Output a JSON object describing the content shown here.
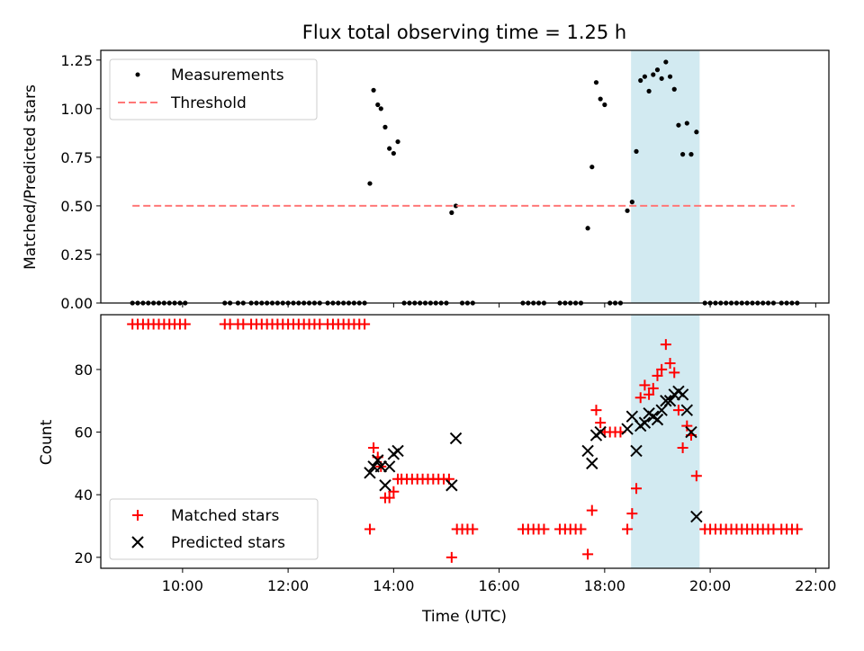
{
  "figure": {
    "title": "Flux total observing time = 1.25 h"
  },
  "chart_data": [
    {
      "type": "scatter",
      "ylabel": "Matched/Predicted stars",
      "xlim": [
        8.45,
        22.25
      ],
      "ylim": [
        0,
        1.3
      ],
      "yticks": [
        "0.00",
        "0.25",
        "0.50",
        "0.75",
        "1.00",
        "1.25"
      ],
      "grid": false,
      "legend_position": "top-left",
      "highlight_span": [
        18.5,
        19.8
      ],
      "highlight_color": "#add8e6",
      "series": [
        {
          "name": "Measurements",
          "marker": "dot",
          "color": "#000000",
          "points": [
            [
              9.05,
              0
            ],
            [
              9.15,
              0
            ],
            [
              9.25,
              0
            ],
            [
              9.35,
              0
            ],
            [
              9.45,
              0
            ],
            [
              9.55,
              0
            ],
            [
              9.65,
              0
            ],
            [
              9.75,
              0
            ],
            [
              9.85,
              0
            ],
            [
              9.95,
              0
            ],
            [
              10.05,
              0
            ],
            [
              10.8,
              0
            ],
            [
              10.9,
              0
            ],
            [
              11.05,
              0
            ],
            [
              11.15,
              0
            ],
            [
              11.3,
              0
            ],
            [
              11.4,
              0
            ],
            [
              11.5,
              0
            ],
            [
              11.6,
              0
            ],
            [
              11.7,
              0
            ],
            [
              11.8,
              0
            ],
            [
              11.9,
              0
            ],
            [
              12.0,
              0
            ],
            [
              12.1,
              0
            ],
            [
              12.2,
              0
            ],
            [
              12.3,
              0
            ],
            [
              12.4,
              0
            ],
            [
              12.5,
              0
            ],
            [
              12.6,
              0
            ],
            [
              12.75,
              0
            ],
            [
              12.85,
              0
            ],
            [
              12.95,
              0
            ],
            [
              13.05,
              0
            ],
            [
              13.15,
              0
            ],
            [
              13.25,
              0
            ],
            [
              13.35,
              0
            ],
            [
              13.45,
              0
            ],
            [
              13.55,
              0.615
            ],
            [
              13.62,
              1.095
            ],
            [
              13.7,
              1.02
            ],
            [
              13.76,
              1.0
            ],
            [
              13.84,
              0.905
            ],
            [
              13.92,
              0.795
            ],
            [
              14.0,
              0.77
            ],
            [
              14.08,
              0.83
            ],
            [
              14.2,
              0
            ],
            [
              14.3,
              0
            ],
            [
              14.4,
              0
            ],
            [
              14.5,
              0
            ],
            [
              14.6,
              0
            ],
            [
              14.7,
              0
            ],
            [
              14.8,
              0
            ],
            [
              14.9,
              0
            ],
            [
              15.0,
              0
            ],
            [
              15.1,
              0.465
            ],
            [
              15.18,
              0.5
            ],
            [
              15.3,
              0
            ],
            [
              15.4,
              0
            ],
            [
              15.5,
              0
            ],
            [
              16.45,
              0
            ],
            [
              16.55,
              0
            ],
            [
              16.65,
              0
            ],
            [
              16.75,
              0
            ],
            [
              16.85,
              0
            ],
            [
              17.15,
              0
            ],
            [
              17.25,
              0
            ],
            [
              17.35,
              0
            ],
            [
              17.45,
              0
            ],
            [
              17.55,
              0
            ],
            [
              17.68,
              0.385
            ],
            [
              17.76,
              0.7
            ],
            [
              17.84,
              1.135
            ],
            [
              17.92,
              1.05
            ],
            [
              18.0,
              1.02
            ],
            [
              18.1,
              0
            ],
            [
              18.2,
              0
            ],
            [
              18.3,
              0
            ],
            [
              18.43,
              0.475
            ],
            [
              18.52,
              0.52
            ],
            [
              18.6,
              0.78
            ],
            [
              18.68,
              1.145
            ],
            [
              18.76,
              1.165
            ],
            [
              18.84,
              1.09
            ],
            [
              18.92,
              1.175
            ],
            [
              19.0,
              1.2
            ],
            [
              19.08,
              1.155
            ],
            [
              19.16,
              1.24
            ],
            [
              19.24,
              1.165
            ],
            [
              19.32,
              1.1
            ],
            [
              19.4,
              0.915
            ],
            [
              19.48,
              0.765
            ],
            [
              19.56,
              0.925
            ],
            [
              19.64,
              0.765
            ],
            [
              19.74,
              0.88
            ],
            [
              19.9,
              0
            ],
            [
              20.0,
              0
            ],
            [
              20.1,
              0
            ],
            [
              20.2,
              0
            ],
            [
              20.3,
              0
            ],
            [
              20.4,
              0
            ],
            [
              20.5,
              0
            ],
            [
              20.6,
              0
            ],
            [
              20.7,
              0
            ],
            [
              20.8,
              0
            ],
            [
              20.9,
              0
            ],
            [
              21.0,
              0
            ],
            [
              21.1,
              0
            ],
            [
              21.2,
              0
            ],
            [
              21.35,
              0
            ],
            [
              21.45,
              0
            ],
            [
              21.55,
              0
            ],
            [
              21.65,
              0
            ]
          ]
        },
        {
          "name": "Threshold",
          "marker": "dashed-line",
          "color": "#ff7777",
          "points": [
            [
              9.05,
              0.5
            ],
            [
              21.6,
              0.5
            ]
          ]
        }
      ]
    },
    {
      "type": "scatter",
      "xlabel": "Time (UTC)",
      "ylabel": "Count",
      "xlim": [
        8.45,
        22.25
      ],
      "ylim": [
        16.5,
        97.5
      ],
      "yticks": [
        "20",
        "40",
        "60",
        "80"
      ],
      "xticks": [
        "10:00",
        "12:00",
        "14:00",
        "16:00",
        "18:00",
        "20:00",
        "22:00"
      ],
      "grid": false,
      "legend_position": "bottom-left",
      "highlight_span": [
        18.5,
        19.8
      ],
      "highlight_color": "#add8e6",
      "series": [
        {
          "name": "Matched stars",
          "marker": "plus",
          "color": "#ff0000",
          "points": [
            [
              9.05,
              94.5
            ],
            [
              9.15,
              94.5
            ],
            [
              9.25,
              94.5
            ],
            [
              9.35,
              94.5
            ],
            [
              9.45,
              94.5
            ],
            [
              9.55,
              94.5
            ],
            [
              9.65,
              94.5
            ],
            [
              9.75,
              94.5
            ],
            [
              9.85,
              94.5
            ],
            [
              9.95,
              94.5
            ],
            [
              10.05,
              94.5
            ],
            [
              10.8,
              94.5
            ],
            [
              10.9,
              94.5
            ],
            [
              11.05,
              94.5
            ],
            [
              11.15,
              94.5
            ],
            [
              11.3,
              94.5
            ],
            [
              11.4,
              94.5
            ],
            [
              11.5,
              94.5
            ],
            [
              11.6,
              94.5
            ],
            [
              11.7,
              94.5
            ],
            [
              11.8,
              94.5
            ],
            [
              11.9,
              94.5
            ],
            [
              12.0,
              94.5
            ],
            [
              12.1,
              94.5
            ],
            [
              12.2,
              94.5
            ],
            [
              12.3,
              94.5
            ],
            [
              12.4,
              94.5
            ],
            [
              12.5,
              94.5
            ],
            [
              12.6,
              94.5
            ],
            [
              12.75,
              94.5
            ],
            [
              12.85,
              94.5
            ],
            [
              12.95,
              94.5
            ],
            [
              13.05,
              94.5
            ],
            [
              13.15,
              94.5
            ],
            [
              13.25,
              94.5
            ],
            [
              13.35,
              94.5
            ],
            [
              13.45,
              94.5
            ],
            [
              13.55,
              29
            ],
            [
              13.62,
              55
            ],
            [
              13.7,
              52
            ],
            [
              13.76,
              49
            ],
            [
              13.84,
              39
            ],
            [
              13.92,
              39
            ],
            [
              14.0,
              41
            ],
            [
              14.08,
              45
            ],
            [
              14.15,
              45
            ],
            [
              14.25,
              45
            ],
            [
              14.35,
              45
            ],
            [
              14.45,
              45
            ],
            [
              14.55,
              45
            ],
            [
              14.65,
              45
            ],
            [
              14.75,
              45
            ],
            [
              14.85,
              45
            ],
            [
              14.95,
              45
            ],
            [
              15.05,
              45
            ],
            [
              15.1,
              20
            ],
            [
              15.2,
              29
            ],
            [
              15.3,
              29
            ],
            [
              15.4,
              29
            ],
            [
              15.5,
              29
            ],
            [
              16.45,
              29
            ],
            [
              16.55,
              29
            ],
            [
              16.65,
              29
            ],
            [
              16.75,
              29
            ],
            [
              16.85,
              29
            ],
            [
              17.15,
              29
            ],
            [
              17.25,
              29
            ],
            [
              17.35,
              29
            ],
            [
              17.45,
              29
            ],
            [
              17.55,
              29
            ],
            [
              17.68,
              21
            ],
            [
              17.76,
              35
            ],
            [
              17.84,
              67
            ],
            [
              17.92,
              63
            ],
            [
              18.0,
              60
            ],
            [
              18.1,
              60
            ],
            [
              18.2,
              60
            ],
            [
              18.3,
              60
            ],
            [
              18.43,
              29
            ],
            [
              18.52,
              34
            ],
            [
              18.6,
              42
            ],
            [
              18.68,
              71
            ],
            [
              18.76,
              75
            ],
            [
              18.84,
              72
            ],
            [
              18.92,
              74
            ],
            [
              19.0,
              78
            ],
            [
              19.08,
              80
            ],
            [
              19.16,
              88
            ],
            [
              19.24,
              82
            ],
            [
              19.32,
              79
            ],
            [
              19.4,
              67
            ],
            [
              19.48,
              55
            ],
            [
              19.56,
              62
            ],
            [
              19.64,
              59
            ],
            [
              19.74,
              46
            ],
            [
              19.9,
              29
            ],
            [
              20.0,
              29
            ],
            [
              20.1,
              29
            ],
            [
              20.2,
              29
            ],
            [
              20.3,
              29
            ],
            [
              20.4,
              29
            ],
            [
              20.5,
              29
            ],
            [
              20.6,
              29
            ],
            [
              20.7,
              29
            ],
            [
              20.8,
              29
            ],
            [
              20.9,
              29
            ],
            [
              21.0,
              29
            ],
            [
              21.1,
              29
            ],
            [
              21.2,
              29
            ],
            [
              21.35,
              29
            ],
            [
              21.45,
              29
            ],
            [
              21.55,
              29
            ],
            [
              21.65,
              29
            ]
          ]
        },
        {
          "name": "Predicted stars",
          "marker": "x",
          "color": "#000000",
          "points": [
            [
              13.55,
              47
            ],
            [
              13.62,
              49
            ],
            [
              13.7,
              51
            ],
            [
              13.76,
              49
            ],
            [
              13.84,
              43
            ],
            [
              13.92,
              49
            ],
            [
              14.0,
              53
            ],
            [
              14.08,
              54
            ],
            [
              15.1,
              43
            ],
            [
              15.18,
              58
            ],
            [
              17.68,
              54
            ],
            [
              17.76,
              50
            ],
            [
              17.84,
              59
            ],
            [
              17.92,
              60
            ],
            [
              18.43,
              61
            ],
            [
              18.52,
              65
            ],
            [
              18.6,
              54
            ],
            [
              18.68,
              62
            ],
            [
              18.76,
              63
            ],
            [
              18.84,
              66
            ],
            [
              18.92,
              65
            ],
            [
              19.0,
              64
            ],
            [
              19.08,
              67
            ],
            [
              19.16,
              70
            ],
            [
              19.24,
              70
            ],
            [
              19.32,
              72
            ],
            [
              19.4,
              73
            ],
            [
              19.48,
              72
            ],
            [
              19.56,
              67
            ],
            [
              19.64,
              60
            ],
            [
              19.74,
              33
            ]
          ]
        }
      ]
    }
  ]
}
